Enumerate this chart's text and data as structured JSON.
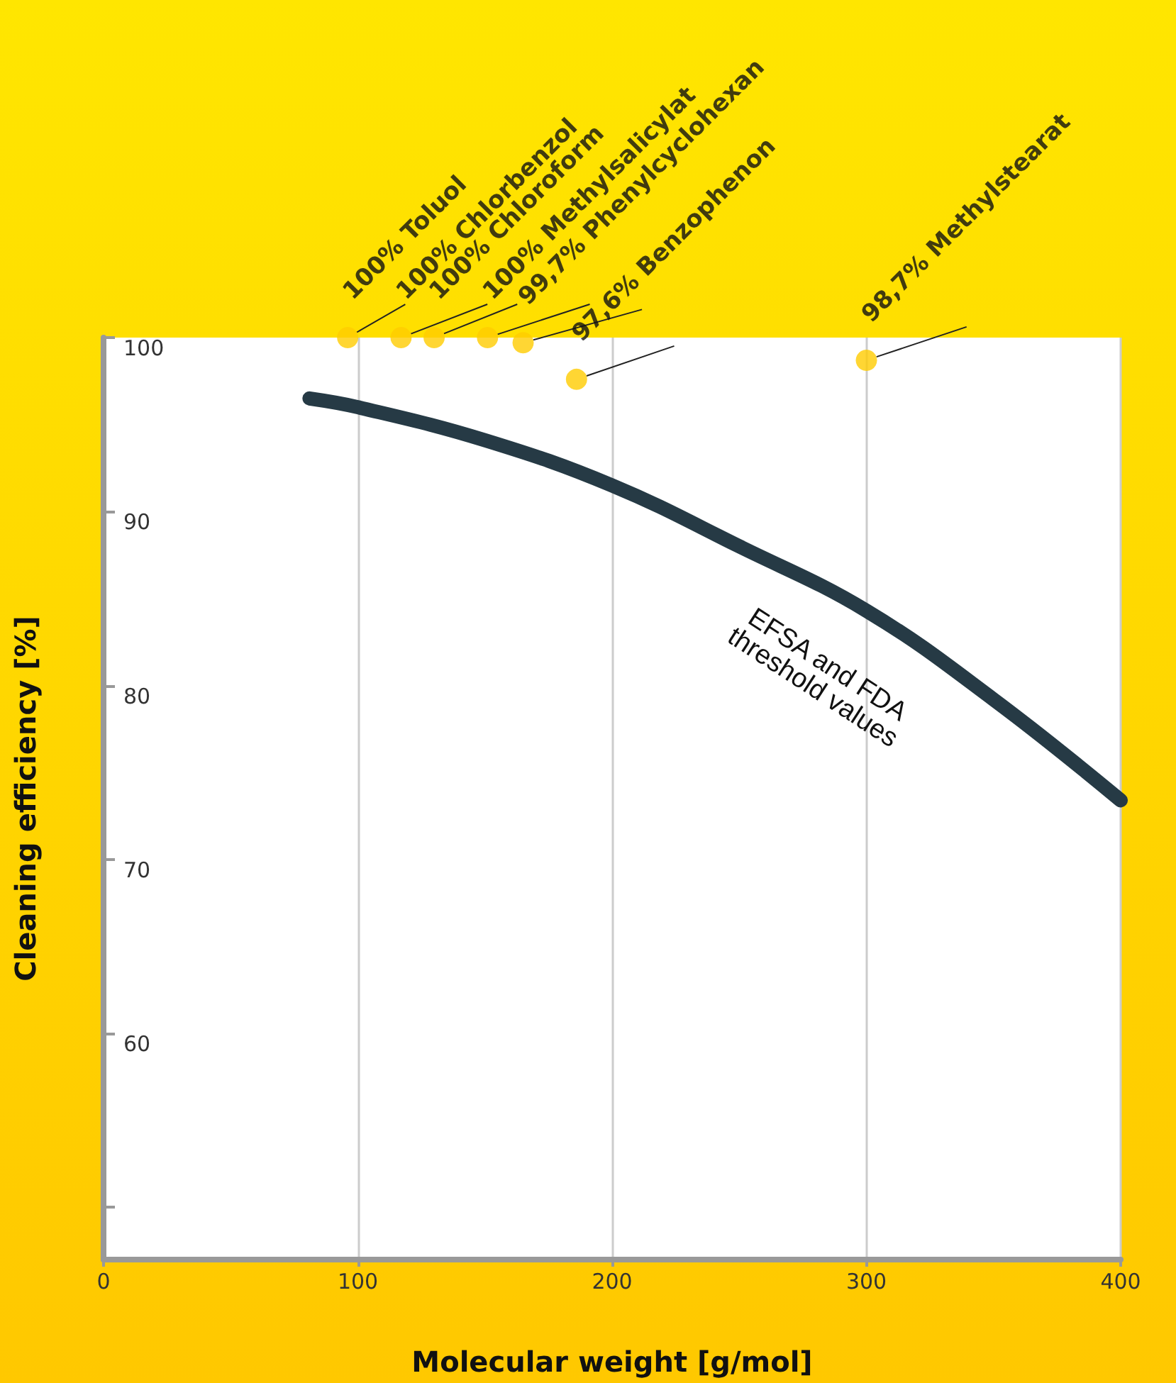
{
  "chart_data": {
    "type": "scatter",
    "xlabel": "Molecular weight [g/mol]",
    "ylabel": "Cleaning efficiency [%]",
    "xlim": [
      0,
      400
    ],
    "xticks": [
      0,
      100,
      200,
      300,
      400
    ],
    "ylim": [
      47,
      100
    ],
    "yticks": [
      {
        "value": 50,
        "label": null
      },
      60,
      70,
      80,
      90,
      100
    ],
    "grid": "x",
    "series": [
      {
        "type": "scatter",
        "color": "#ffcc00",
        "marker": "circle",
        "x": [
          96,
          117,
          130,
          151,
          165,
          186,
          300
        ],
        "values": [
          100,
          100,
          100,
          100,
          99.7,
          97.6,
          98.7
        ],
        "value_labels": [
          "100% Toluol",
          "100% Chlorbenzol",
          "100% Chloroform",
          "100% Methylsalicylat",
          "99,7% Phenylcyclohexan",
          "97,6% Benzophenon",
          "98,7% Methylstearat"
        ]
      },
      {
        "type": "line",
        "color": "#263a45",
        "marker": "none",
        "line_style": "solid",
        "x": [
          81,
          100,
          150,
          200,
          250,
          300,
          350,
          400
        ],
        "values": [
          96.5,
          96,
          94.1,
          91.5,
          88,
          84.3,
          79.2,
          73.4
        ]
      }
    ],
    "annotations": [
      "EFSA and FDA\nthreshold values"
    ]
  }
}
